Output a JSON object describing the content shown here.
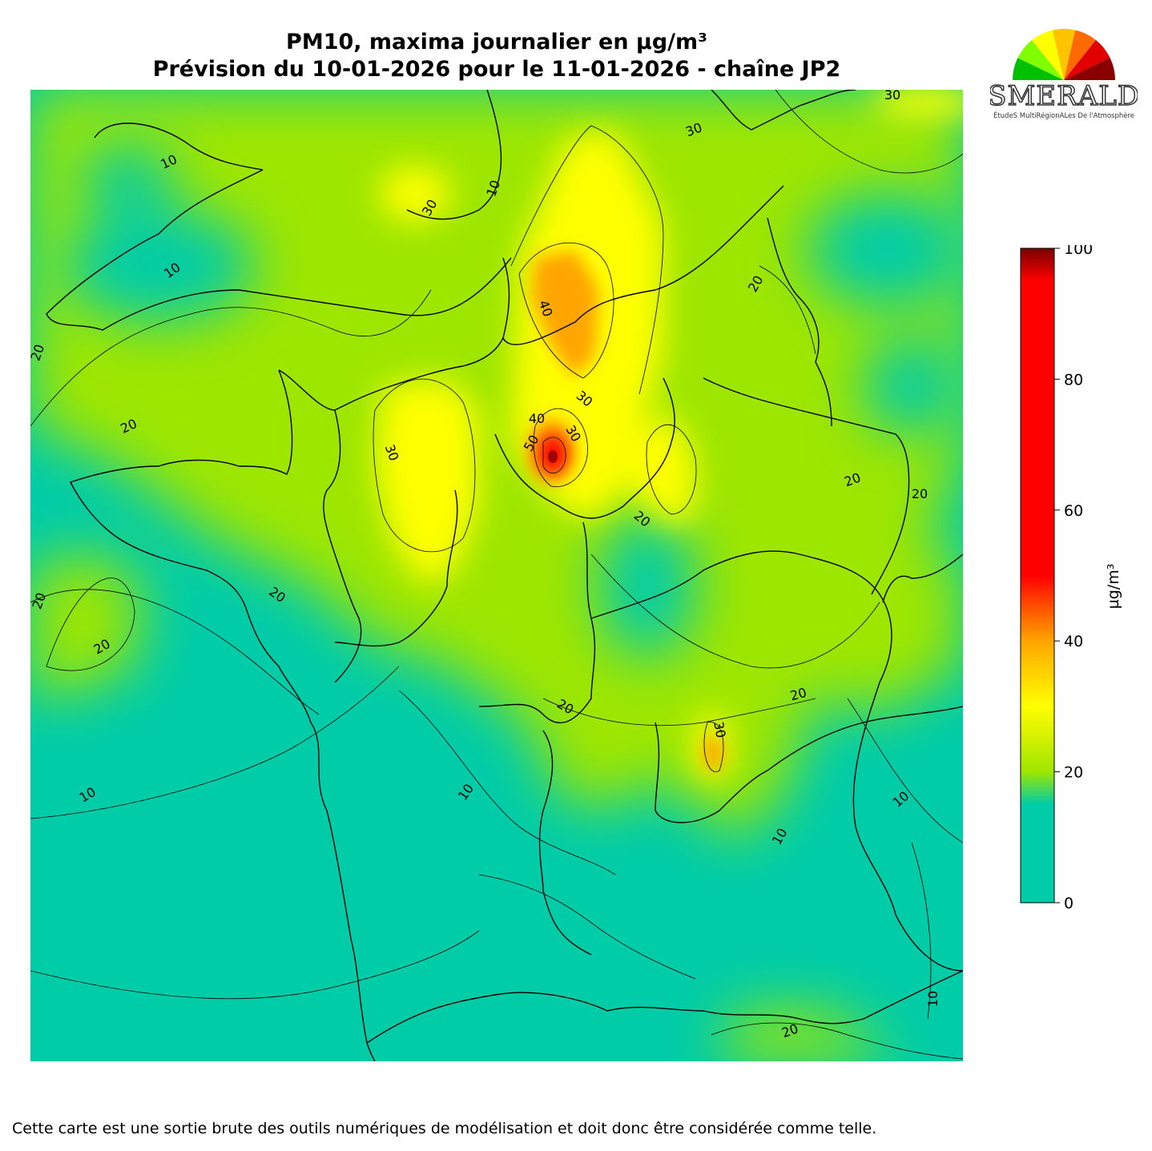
{
  "title": {
    "line1": "PM10, maxima journalier en µg/m³",
    "line2": "Prévision du 10-01-2026 pour le 11-01-2026 - chaîne JP2"
  },
  "logo": {
    "text": "ESMERALDA",
    "subtitle": "ÉtudeS MultiRégionALes De l'Atmosphère",
    "colors": [
      "#8a0000",
      "#e00000",
      "#ff6a00",
      "#ffc400",
      "#ffff00",
      "#7fff00",
      "#00c000"
    ]
  },
  "colorbar": {
    "unit_label": "µg/m³",
    "min": 0,
    "max": 100,
    "ticks": [
      "0",
      "20",
      "40",
      "60",
      "80",
      "100"
    ],
    "stops": [
      {
        "value": 0,
        "color": "#00cca8"
      },
      {
        "value": 15,
        "color": "#00cca8"
      },
      {
        "value": 20,
        "color": "#9de600"
      },
      {
        "value": 25,
        "color": "#d2f000"
      },
      {
        "value": 30,
        "color": "#ffff00"
      },
      {
        "value": 40,
        "color": "#ffa500"
      },
      {
        "value": 50,
        "color": "#ff0000"
      },
      {
        "value": 95,
        "color": "#ff0000"
      },
      {
        "value": 100,
        "color": "#7a0000"
      }
    ]
  },
  "map": {
    "field": "PM10 daily maximum",
    "contour_labels": [
      "10",
      "10",
      "10",
      "10",
      "10",
      "10",
      "10",
      "10",
      "20",
      "20",
      "20",
      "20",
      "20",
      "20",
      "20",
      "20",
      "20",
      "20",
      "20",
      "20",
      "30",
      "30",
      "30",
      "30",
      "30",
      "30",
      "30",
      "40",
      "40",
      "50"
    ],
    "background_color": "#00cca8"
  },
  "footer": "Cette carte est une sortie brute des outils numériques de modélisation et doit donc être considérée comme telle."
}
